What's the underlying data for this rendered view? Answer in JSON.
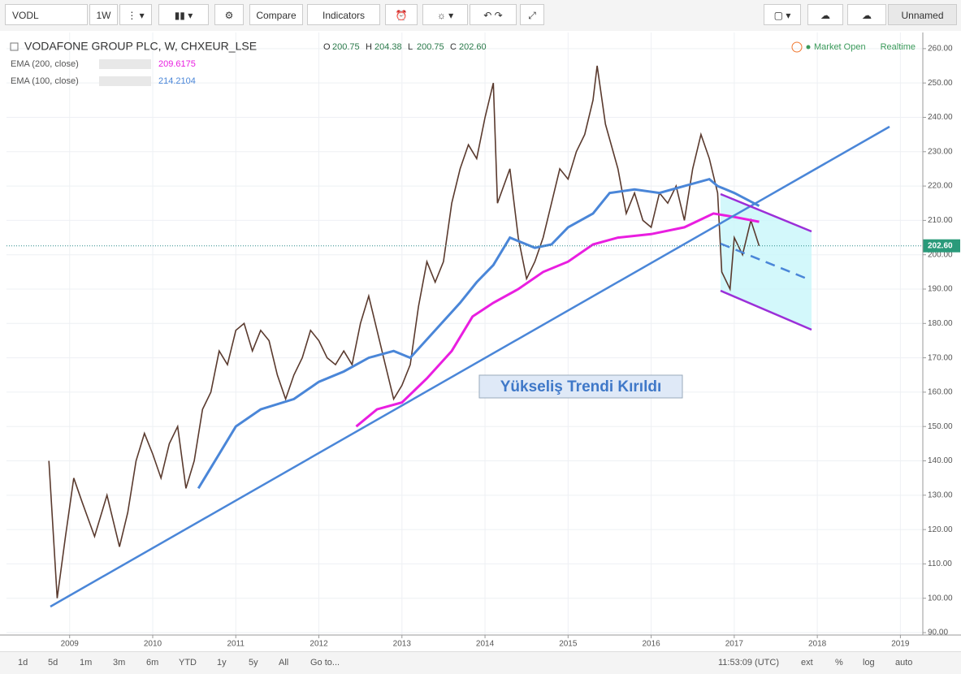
{
  "toolbar": {
    "symbol": "VODL",
    "interval": "1W",
    "compare": "Compare",
    "indicators": "Indicators",
    "layout": "Unnamed"
  },
  "header": {
    "title": "VODAFONE GROUP PLC, W, CHXEUR_LSE",
    "ohlc": [
      {
        "key": "O",
        "value": "200.75"
      },
      {
        "key": "H",
        "value": "204.38"
      },
      {
        "key": "L",
        "value": "200.75"
      },
      {
        "key": "C",
        "value": "202.60"
      }
    ],
    "status": "Market Open",
    "realtime": "Realtime"
  },
  "chart_data": {
    "type": "line",
    "annotation": "Yükseliş Trendi Kırıldı",
    "xlim": [
      2008.24,
      2019.27
    ],
    "xticks": [
      2009,
      2010,
      2011,
      2012,
      2013,
      2014,
      2015,
      2016,
      2017,
      2018,
      2019
    ],
    "ylim": [
      89.3,
      264.7
    ],
    "yticks": [
      {
        "value": 90,
        "label": "90.00"
      },
      {
        "value": 100,
        "label": "100.00"
      },
      {
        "value": 110,
        "label": "110.00"
      },
      {
        "value": 120,
        "label": "120.00"
      },
      {
        "value": 130,
        "label": "130.00"
      },
      {
        "value": 140,
        "label": "140.00"
      },
      {
        "value": 150,
        "label": "150.00"
      },
      {
        "value": 160,
        "label": "160.00"
      },
      {
        "value": 170,
        "label": "170.00"
      },
      {
        "value": 180,
        "label": "180.00"
      },
      {
        "value": 190,
        "label": "190.00"
      },
      {
        "value": 200,
        "label": "200.00"
      },
      {
        "value": 210,
        "label": "210.00"
      },
      {
        "value": 220,
        "label": "220.00"
      },
      {
        "value": 230,
        "label": "230.00"
      },
      {
        "value": 240,
        "label": "240.00"
      },
      {
        "value": 250,
        "label": "250.00"
      },
      {
        "value": 260,
        "label": "260.00"
      }
    ],
    "grid": true,
    "last_price": {
      "value": 202.6,
      "label": "202.60"
    },
    "series": [
      {
        "color": "#5a3a2e",
        "x": [
          2008.75,
          2008.85,
          2008.95,
          2009.05,
          2009.15,
          2009.3,
          2009.45,
          2009.6,
          2009.7,
          2009.8,
          2009.9,
          2010.0,
          2010.1,
          2010.2,
          2010.3,
          2010.4,
          2010.5,
          2010.6,
          2010.7,
          2010.8,
          2010.9,
          2011.0,
          2011.1,
          2011.2,
          2011.3,
          2011.4,
          2011.5,
          2011.6,
          2011.7,
          2011.8,
          2011.9,
          2012.0,
          2012.1,
          2012.2,
          2012.3,
          2012.4,
          2012.5,
          2012.6,
          2012.7,
          2012.8,
          2012.9,
          2013.0,
          2013.1,
          2013.2,
          2013.3,
          2013.4,
          2013.5,
          2013.6,
          2013.7,
          2013.8,
          2013.9,
          2014.0,
          2014.1,
          2014.15,
          2014.3,
          2014.4,
          2014.5,
          2014.6,
          2014.7,
          2014.8,
          2014.9,
          2015.0,
          2015.1,
          2015.2,
          2015.3,
          2015.35,
          2015.45,
          2015.6,
          2015.7,
          2015.8,
          2015.9,
          2016.0,
          2016.1,
          2016.2,
          2016.3,
          2016.4,
          2016.5,
          2016.6,
          2016.7,
          2016.8,
          2016.85,
          2016.95,
          2017.0,
          2017.1,
          2017.2,
          2017.3
        ],
        "values": [
          140,
          100,
          118,
          135,
          128,
          118,
          130,
          115,
          125,
          140,
          148,
          142,
          135,
          145,
          150,
          132,
          140,
          155,
          160,
          172,
          168,
          178,
          180,
          172,
          178,
          175,
          165,
          158,
          165,
          170,
          178,
          175,
          170,
          168,
          172,
          168,
          180,
          188,
          178,
          168,
          158,
          162,
          168,
          185,
          198,
          192,
          198,
          215,
          225,
          232,
          228,
          240,
          250,
          215,
          225,
          205,
          193,
          198,
          205,
          215,
          225,
          222,
          230,
          235,
          245,
          255,
          238,
          225,
          212,
          218,
          210,
          208,
          218,
          215,
          220,
          210,
          225,
          235,
          228,
          218,
          195,
          190,
          205,
          200,
          210,
          202.6
        ]
      },
      {
        "name": "EMA (200, close)",
        "last_label": "209.6175",
        "color": "#e91ee0",
        "x": [
          2012.45,
          2012.7,
          2013.0,
          2013.3,
          2013.6,
          2013.85,
          2014.1,
          2014.4,
          2014.7,
          2015.0,
          2015.3,
          2015.6,
          2016.0,
          2016.4,
          2016.75,
          2017.0,
          2017.3
        ],
        "values": [
          150,
          155,
          157,
          164,
          172,
          182,
          186,
          190,
          195,
          198,
          203,
          205,
          206,
          208,
          212,
          211,
          209.6
        ]
      },
      {
        "name": "EMA (100, close)",
        "last_label": "214.2104",
        "color": "#4a86d8",
        "x": [
          2010.55,
          2010.8,
          2011.0,
          2011.3,
          2011.7,
          2012.0,
          2012.3,
          2012.6,
          2012.9,
          2013.1,
          2013.4,
          2013.7,
          2013.9,
          2014.1,
          2014.3,
          2014.6,
          2014.8,
          2015.0,
          2015.3,
          2015.5,
          2015.8,
          2016.1,
          2016.4,
          2016.7,
          2016.8,
          2017.0,
          2017.3
        ],
        "values": [
          132,
          142,
          150,
          155,
          158,
          163,
          166,
          170,
          172,
          170,
          178,
          186,
          192,
          197,
          205,
          202,
          203,
          208,
          212,
          218,
          219,
          218,
          220,
          222,
          220,
          218,
          214.2
        ]
      }
    ]
  },
  "bottom_bar": {
    "ranges": [
      "1d",
      "5d",
      "1m",
      "3m",
      "6m",
      "YTD",
      "1y",
      "5y",
      "All",
      "Go to..."
    ],
    "clock": "11:53:09 (UTC)",
    "options": [
      "ext",
      "%",
      "log",
      "auto"
    ]
  }
}
